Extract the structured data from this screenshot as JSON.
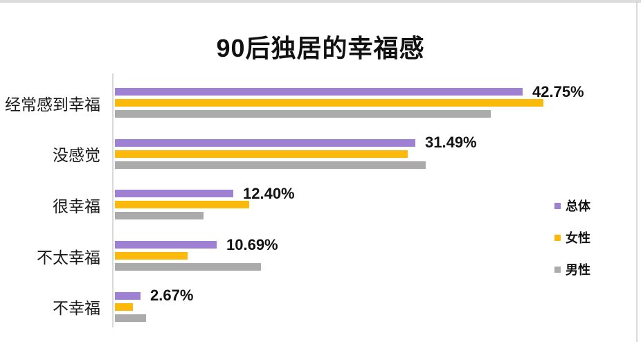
{
  "page": {
    "background": "#ffffff",
    "top_strip_color": "#dcdcdc",
    "right_border_color": "#d9d9d9",
    "axis_line_color": "#d9d9d9"
  },
  "chart_data": {
    "type": "bar",
    "orientation": "horizontal",
    "title": "90后独居的幸福感",
    "categories": [
      "经常感到幸福",
      "没感觉",
      "很幸福",
      "不太幸福",
      "不幸福"
    ],
    "series": [
      {
        "key": "overall",
        "name": "总体",
        "color": "#9f81d4",
        "values": [
          42.75,
          31.49,
          12.4,
          10.69,
          2.67
        ]
      },
      {
        "key": "female",
        "name": "女性",
        "color": "#fbb90b",
        "values": [
          44.9,
          30.7,
          14.1,
          7.6,
          1.9
        ]
      },
      {
        "key": "male",
        "name": "男性",
        "color": "#ababab",
        "values": [
          39.4,
          32.6,
          9.3,
          15.3,
          3.3
        ]
      }
    ],
    "value_labels": [
      "42.75%",
      "31.49%",
      "12.40%",
      "10.69%",
      "2.67%"
    ],
    "value_labels_series": "总体",
    "legend": {
      "position": "right",
      "items": [
        "总体",
        "女性",
        "男性"
      ]
    },
    "axis": {
      "x_min": 0,
      "gridlines": false,
      "value_axis_hidden": true
    }
  }
}
